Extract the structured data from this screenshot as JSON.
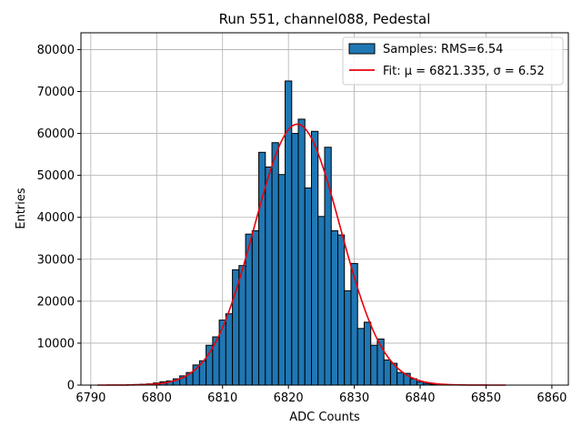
{
  "chart_data": {
    "type": "bar",
    "title": "Run 551, channel088, Pedestal",
    "xlabel": "ADC Counts",
    "ylabel": "Entries",
    "xlim": [
      6788.5,
      6862.5
    ],
    "ylim": [
      0,
      84000
    ],
    "xticks": [
      6790,
      6800,
      6810,
      6820,
      6830,
      6840,
      6850,
      6860
    ],
    "yticks": [
      0,
      10000,
      20000,
      30000,
      40000,
      50000,
      60000,
      70000,
      80000
    ],
    "grid": true,
    "legend_position": "top-right",
    "colors": {
      "bars": "#1f77b4",
      "bar_edge": "#000000",
      "fit": "#e8000b",
      "grid": "#b0b0b0"
    },
    "histogram": {
      "name": "Samples: RMS=6.54",
      "bins": [
        6796,
        6797,
        6798,
        6799,
        6800,
        6801,
        6802,
        6803,
        6804,
        6805,
        6806,
        6807,
        6808,
        6809,
        6810,
        6811,
        6812,
        6813,
        6814,
        6815,
        6816,
        6817,
        6818,
        6819,
        6820,
        6821,
        6822,
        6823,
        6824,
        6825,
        6826,
        6827,
        6828,
        6829,
        6830,
        6831,
        6832,
        6833,
        6834,
        6835,
        6836,
        6837,
        6838,
        6839,
        6840,
        6841,
        6842
      ],
      "values": [
        100,
        150,
        200,
        300,
        500,
        800,
        1000,
        1500,
        2200,
        3000,
        4800,
        5800,
        9500,
        11500,
        15500,
        17000,
        27500,
        28500,
        36000,
        36800,
        55500,
        52000,
        57800,
        50200,
        72500,
        60000,
        63400,
        47000,
        60500,
        40200,
        56700,
        36800,
        35800,
        22500,
        29000,
        13500,
        15000,
        9500,
        11000,
        6000,
        5200,
        3000,
        2800,
        1500,
        800,
        400,
        200
      ]
    },
    "fit": {
      "name": "Fit: μ = 6821.335, σ = 6.52",
      "mu": 6821.335,
      "sigma": 6.52,
      "amplitude": 62200,
      "x_range": [
        6791,
        6853
      ]
    }
  }
}
